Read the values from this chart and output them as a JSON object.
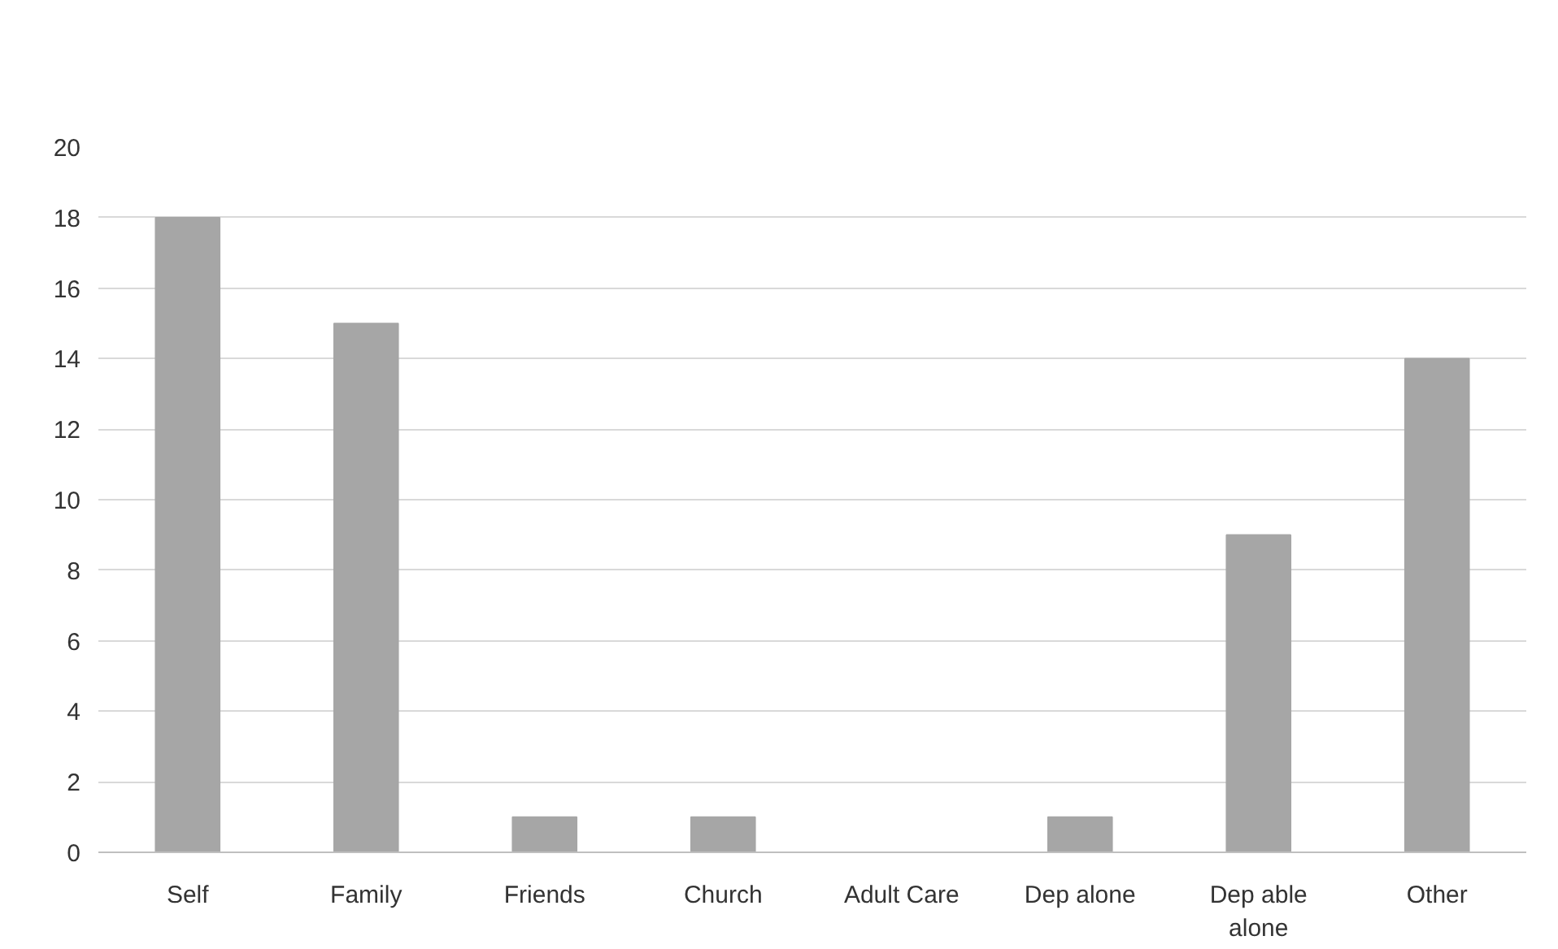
{
  "chart_data": {
    "type": "bar",
    "categories": [
      "Self",
      "Family",
      "Friends",
      "Church",
      "Adult Care",
      "Dep alone",
      "Dep able alone",
      "Other"
    ],
    "values": [
      18,
      15,
      1,
      1,
      0,
      1,
      9,
      14
    ],
    "color": "#a6a6a6",
    "ylim": [
      0,
      20
    ],
    "yticks": [
      0,
      2,
      4,
      6,
      8,
      10,
      12,
      14,
      16,
      18,
      20
    ],
    "grid": "y"
  }
}
